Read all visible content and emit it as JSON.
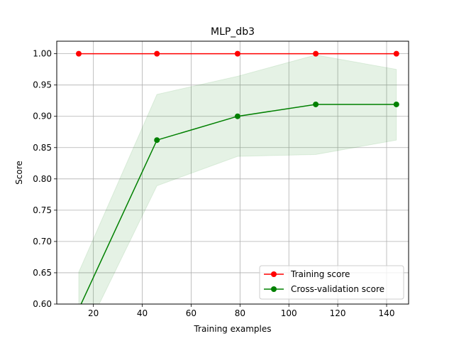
{
  "chart_data": {
    "type": "line",
    "title": "MLP_db3",
    "xlabel": "Training examples",
    "ylabel": "Score",
    "xlim": [
      5,
      149
    ],
    "ylim": [
      0.6,
      1.02
    ],
    "xticks": [
      20,
      40,
      60,
      80,
      100,
      120,
      140
    ],
    "yticks": [
      0.6,
      0.65,
      0.7,
      0.75,
      0.8,
      0.85,
      0.9,
      0.95,
      1.0
    ],
    "grid": true,
    "legend_position": "lower-right",
    "x": [
      14,
      46,
      79,
      111,
      144
    ],
    "series": [
      {
        "name": "Training score",
        "color": "#ff0000",
        "marker": "circle",
        "values": [
          1.0,
          1.0,
          1.0,
          1.0,
          1.0
        ],
        "band_lower": [
          1.0,
          1.0,
          1.0,
          1.0,
          1.0
        ],
        "band_upper": [
          1.0,
          1.0,
          1.0,
          1.0,
          1.0
        ]
      },
      {
        "name": "Cross-validation score",
        "color": "#008000",
        "marker": "circle",
        "values": [
          0.592,
          0.862,
          0.9,
          0.919,
          0.919
        ],
        "band_lower": [
          0.533,
          0.789,
          0.836,
          0.839,
          0.862
        ],
        "band_upper": [
          0.651,
          0.935,
          0.964,
          0.998,
          0.975
        ]
      }
    ]
  }
}
